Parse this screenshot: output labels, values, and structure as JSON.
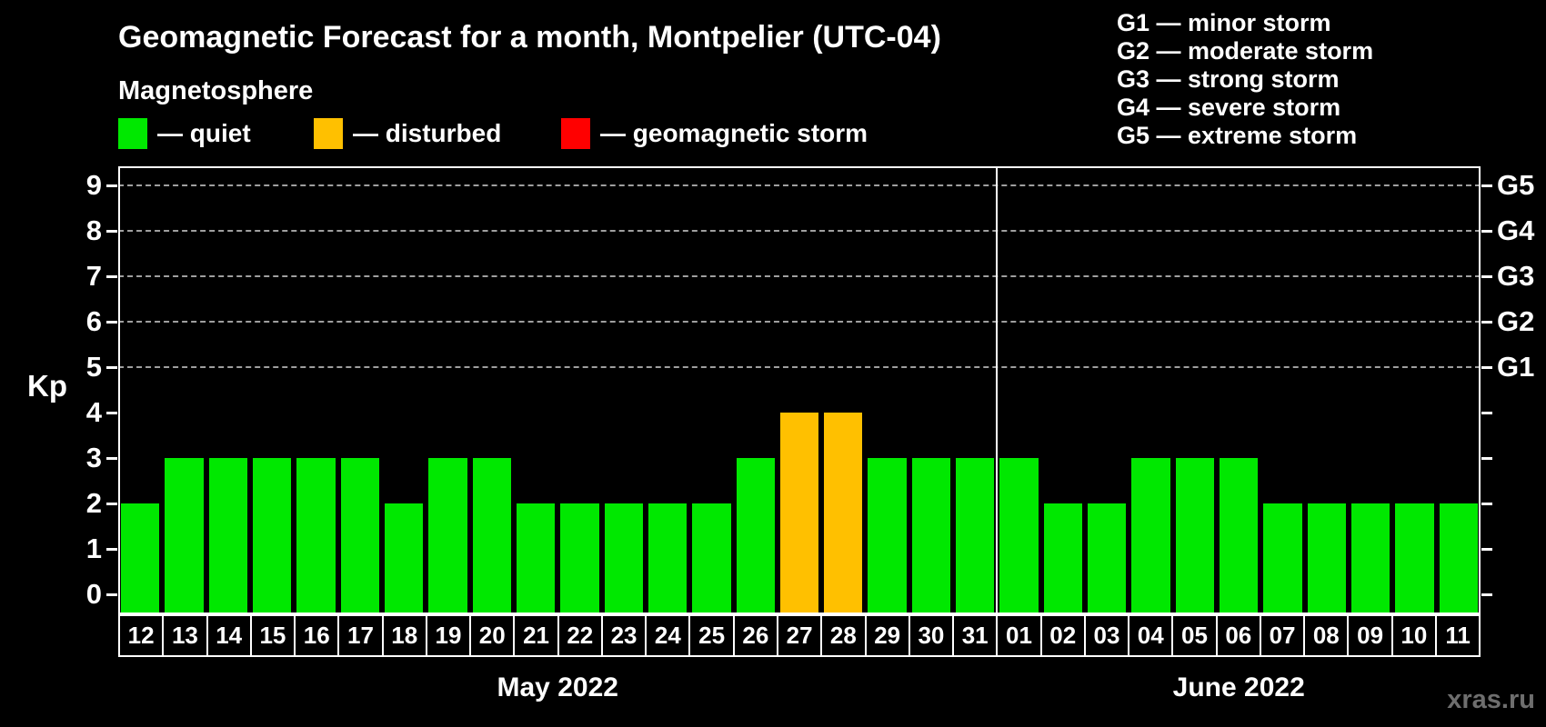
{
  "title": "Geomagnetic Forecast for a month, Montpelier (UTC-04)",
  "subtitle": "Magnetosphere",
  "legend": {
    "items": [
      {
        "name": "quiet",
        "swatch_color": "#00e800",
        "label": "— quiet"
      },
      {
        "name": "disturbed",
        "swatch_color": "#ffc000",
        "label": "— disturbed"
      },
      {
        "name": "storm",
        "swatch_color": "#ff0000",
        "label": "— geomagnetic storm"
      }
    ]
  },
  "g_legend": [
    "G1 — minor storm",
    "G2 — moderate storm",
    "G3 — strong storm",
    "G4 — severe storm",
    "G5 — extreme storm"
  ],
  "watermark": "xras.ru",
  "chart_data": {
    "type": "bar",
    "title": "Geomagnetic Forecast for a month, Montpelier (UTC-04)",
    "ylabel": "Kp",
    "ylim": [
      0,
      9
    ],
    "yticks": [
      0,
      1,
      2,
      3,
      4,
      5,
      6,
      7,
      8,
      9
    ],
    "gridlines_at": [
      5,
      6,
      7,
      8,
      9
    ],
    "grid": "dashed horizontal lines at Kp 5-9 only",
    "right_axis": [
      {
        "kp": 5,
        "label": "G1"
      },
      {
        "kp": 6,
        "label": "G2"
      },
      {
        "kp": 7,
        "label": "G3"
      },
      {
        "kp": 8,
        "label": "G4"
      },
      {
        "kp": 9,
        "label": "G5"
      }
    ],
    "groups": [
      {
        "label": "May 2022",
        "count": 20
      },
      {
        "label": "June 2022",
        "count": 11
      }
    ],
    "categories": [
      "12",
      "13",
      "14",
      "15",
      "16",
      "17",
      "18",
      "19",
      "20",
      "21",
      "22",
      "23",
      "24",
      "25",
      "26",
      "27",
      "28",
      "29",
      "30",
      "31",
      "01",
      "02",
      "03",
      "04",
      "05",
      "06",
      "07",
      "08",
      "09",
      "10",
      "11"
    ],
    "values": [
      2,
      3,
      3,
      3,
      3,
      3,
      2,
      3,
      3,
      2,
      2,
      2,
      2,
      2,
      3,
      4,
      4,
      3,
      3,
      3,
      3,
      2,
      2,
      3,
      3,
      3,
      2,
      2,
      2,
      2,
      2
    ],
    "statuses": [
      "quiet",
      "quiet",
      "quiet",
      "quiet",
      "quiet",
      "quiet",
      "quiet",
      "quiet",
      "quiet",
      "quiet",
      "quiet",
      "quiet",
      "quiet",
      "quiet",
      "quiet",
      "disturbed",
      "disturbed",
      "quiet",
      "quiet",
      "quiet",
      "quiet",
      "quiet",
      "quiet",
      "quiet",
      "quiet",
      "quiet",
      "quiet",
      "quiet",
      "quiet",
      "quiet",
      "quiet"
    ],
    "status_colors": {
      "quiet": "#00e800",
      "disturbed": "#ffc000",
      "storm": "#ff0000"
    }
  }
}
